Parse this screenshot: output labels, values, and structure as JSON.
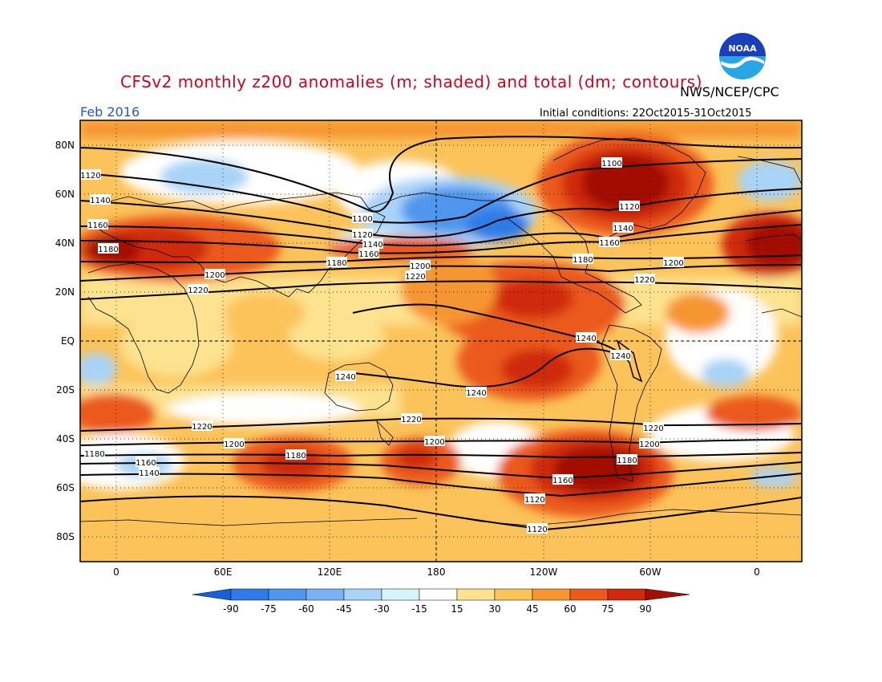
{
  "header": {
    "title": "CFSv2 monthly z200 anomalies (m; shaded) and total (dm; contours)",
    "credit": "NWS/NCEP/CPC",
    "month": "Feb 2016",
    "initial_conditions": "Initial conditions: 22Oct2015-31Oct2015",
    "logo_text": "NOAA"
  },
  "map": {
    "lat_labels": [
      "80N",
      "60N",
      "40N",
      "20N",
      "EQ",
      "20S",
      "40S",
      "60S",
      "80S"
    ],
    "lon_labels": [
      "0",
      "60E",
      "120E",
      "180",
      "120W",
      "60W",
      "0"
    ],
    "contour_labels": [
      "1100",
      "1120",
      "1140",
      "1160",
      "1180",
      "1200",
      "1220",
      "1240"
    ]
  },
  "legend": {
    "ticks": [
      "-90",
      "-75",
      "-60",
      "-45",
      "-30",
      "-15",
      "15",
      "30",
      "45",
      "60",
      "75",
      "90"
    ],
    "colors": [
      "#1660d8",
      "#2f7ce8",
      "#4f96ee",
      "#78b3f3",
      "#a9d3f7",
      "#d5f4fb",
      "#ffffff",
      "#fde28f",
      "#fbc35a",
      "#f69630",
      "#eb5a1a",
      "#cf2a0c",
      "#a30f05"
    ]
  }
}
